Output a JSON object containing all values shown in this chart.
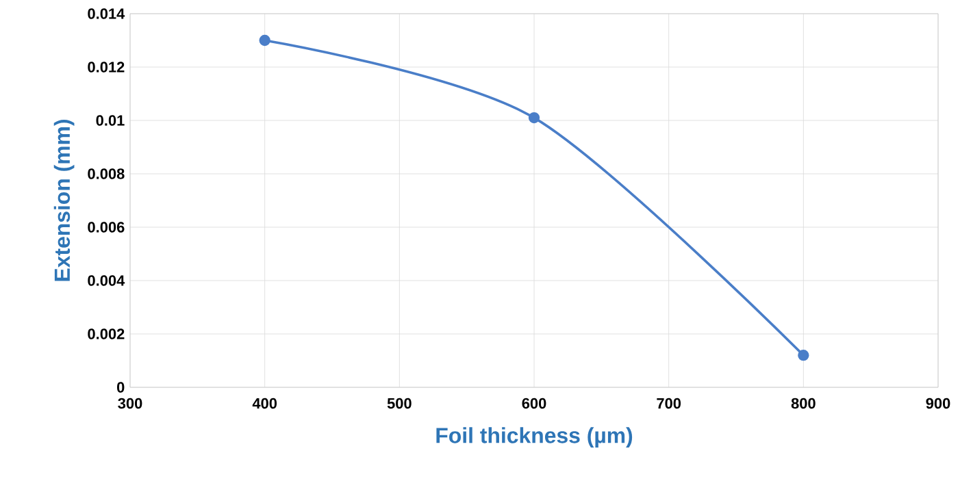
{
  "chart_data": {
    "type": "line",
    "xlabel": "Foil thickness (µm)",
    "ylabel": "Extension (mm)",
    "x": [
      400,
      600,
      800
    ],
    "series": [
      {
        "color": "#4a7ec8",
        "values": [
          0.013,
          0.0101,
          0.0012
        ]
      }
    ],
    "xlim": [
      300,
      900
    ],
    "xticks": [
      300,
      400,
      500,
      600,
      700,
      800,
      900
    ],
    "ylim": [
      0,
      0.014
    ],
    "yticks": [
      0,
      0.002,
      0.004,
      0.006,
      0.008,
      0.01,
      0.012,
      0.014
    ],
    "grid": true,
    "marker": "circle",
    "line_style": "solid"
  }
}
